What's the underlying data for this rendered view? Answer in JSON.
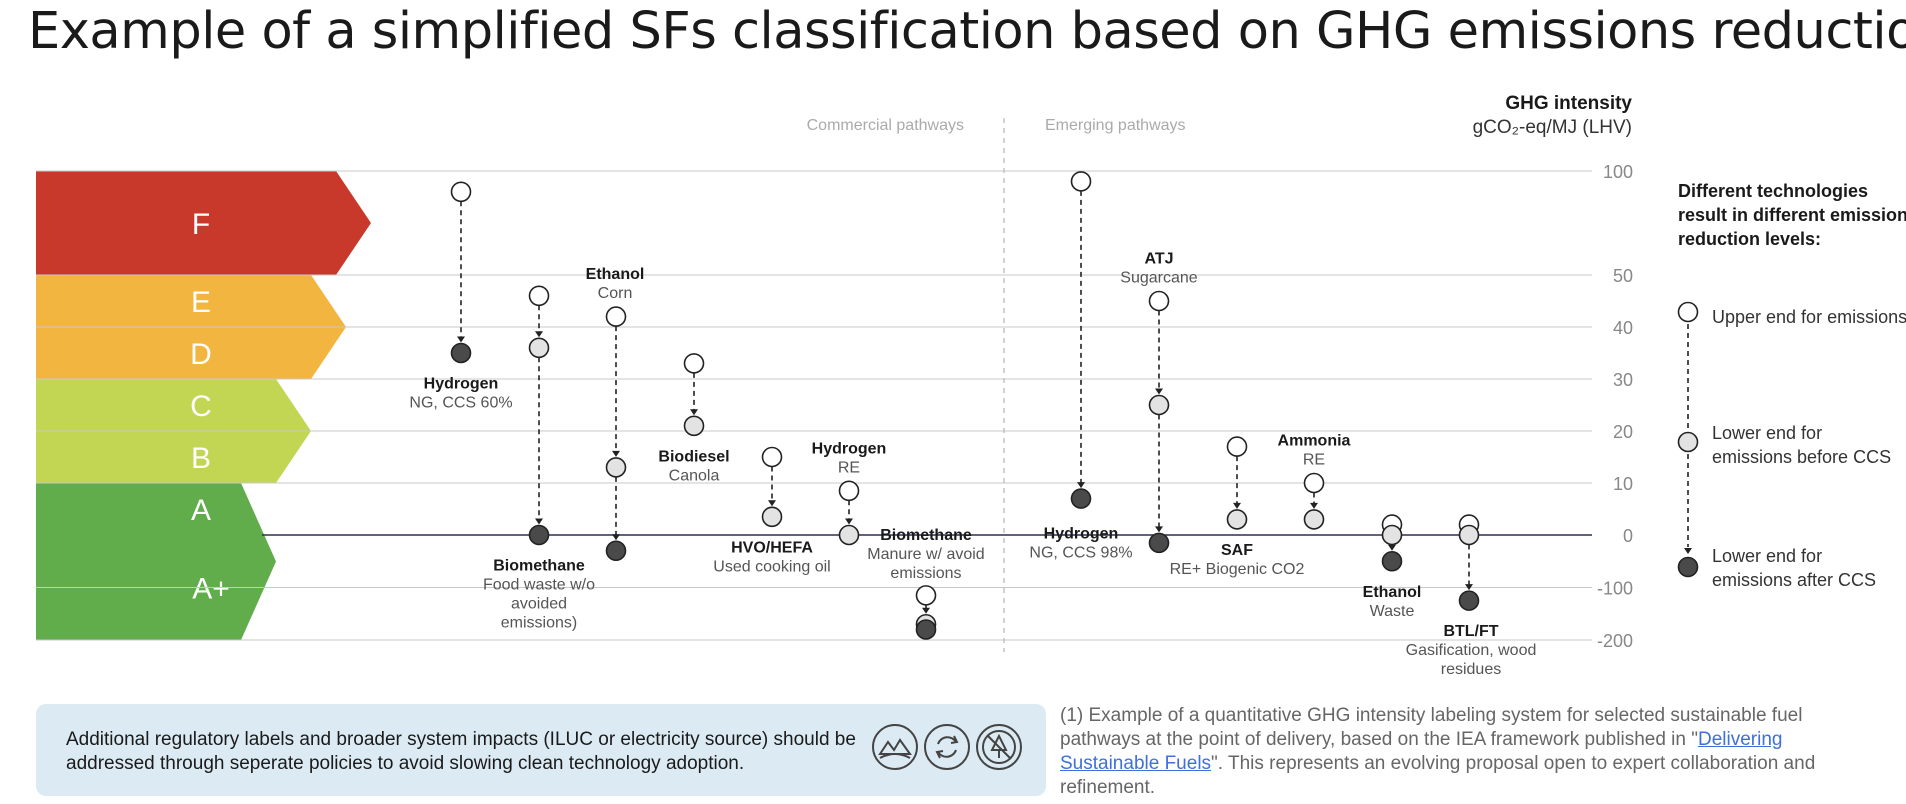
{
  "title": "Example of a simplified SFs classification based on GHG emissions reduction",
  "chart_data": {
    "type": "dumbbell",
    "axis": {
      "title_line1": "GHG intensity",
      "title_line2": "gCO₂-eq/MJ (LHV)",
      "tick_labels": [
        "100",
        "50",
        "40",
        "30",
        "20",
        "10",
        "0",
        "-100",
        "-200"
      ],
      "ylim": [
        -200,
        100
      ],
      "scale": "broken (linear 0–50, compressed above 50 and below 0)"
    },
    "sections": {
      "commercial": "Commercial pathways",
      "emerging": "Emerging pathways"
    },
    "classes": [
      {
        "label": "F",
        "range": [
          50,
          100
        ],
        "color": "#c8392b"
      },
      {
        "label": "E",
        "range": [
          40,
          50
        ],
        "color": "#f2b53f"
      },
      {
        "label": "D",
        "range": [
          30,
          40
        ],
        "color": "#f2b53f"
      },
      {
        "label": "C",
        "range": [
          20,
          30
        ],
        "color": "#c3d653"
      },
      {
        "label": "B",
        "range": [
          10,
          20
        ],
        "color": "#c3d653"
      },
      {
        "label": "A",
        "range": [
          0,
          10
        ],
        "color": "#61ac4b"
      },
      {
        "label": "A+",
        "range": [
          -200,
          0
        ],
        "color": "#61ac4b"
      }
    ],
    "pathways": [
      {
        "name": "Hydrogen",
        "sub": "NG, CCS 60%",
        "upper": 90,
        "before_ccs": null,
        "after_ccs": 35,
        "section": "commercial"
      },
      {
        "name": "Biomethane",
        "sub": "Food waste w/o avoided emissions)",
        "upper": 46,
        "before_ccs": 36,
        "after_ccs": 0,
        "section": "commercial"
      },
      {
        "name": "Ethanol",
        "sub": "Corn",
        "upper": 42,
        "before_ccs": 13,
        "after_ccs": -30,
        "section": "commercial"
      },
      {
        "name": "Biodiesel",
        "sub": "Canola",
        "upper": 33,
        "before_ccs": 21,
        "after_ccs": null,
        "section": "commercial"
      },
      {
        "name": "HVO/HEFA",
        "sub": "Used cooking oil",
        "upper": 15,
        "before_ccs": 3.5,
        "after_ccs": null,
        "section": "commercial"
      },
      {
        "name": "Hydrogen",
        "sub": "RE",
        "upper": 8.5,
        "before_ccs": 0,
        "after_ccs": null,
        "section": "commercial"
      },
      {
        "name": "Biomethane",
        "sub": "Manure w/ avoid emissions",
        "upper": -115,
        "before_ccs": -170,
        "after_ccs": -180,
        "section": "commercial"
      },
      {
        "name": "Hydrogen",
        "sub": "NG, CCS 98%",
        "upper": 95,
        "before_ccs": null,
        "after_ccs": 7,
        "section": "emerging"
      },
      {
        "name": "ATJ",
        "sub": "Sugarcane",
        "upper": 45,
        "before_ccs": 25,
        "after_ccs": -15,
        "section": "emerging"
      },
      {
        "name": "SAF",
        "sub": "RE+ Biogenic CO2",
        "upper": 17,
        "before_ccs": 3,
        "after_ccs": null,
        "section": "emerging"
      },
      {
        "name": "Ammonia",
        "sub": "RE",
        "upper": 10,
        "before_ccs": 3,
        "after_ccs": null,
        "section": "emerging"
      },
      {
        "name": "Ethanol",
        "sub": "Waste",
        "upper": 2,
        "before_ccs": 0,
        "after_ccs": -50,
        "section": "emerging"
      },
      {
        "name": "BTL/FT",
        "sub": "Gasification, wood residues",
        "upper": 2,
        "before_ccs": 0,
        "after_ccs": -125,
        "section": "emerging"
      }
    ],
    "legend": {
      "heading": [
        "Different technologies",
        "result in different emission",
        "reduction levels:"
      ],
      "upper": [
        "Upper end for emissions"
      ],
      "before": [
        "Lower end for",
        "emissions before CCS"
      ],
      "after": [
        "Lower end for",
        "emissions after CCS"
      ]
    },
    "colors": {
      "upper": "#ffffff",
      "before_ccs": "#e3e3e3",
      "after_ccs": "#4a4a4a",
      "grid": "#c8c8c8",
      "zero_line": "#2b2f54"
    }
  },
  "footer": {
    "text": "Additional regulatory labels and broader system impacts (ILUC or electricity source) should be addressed through seperate policies to avoid slowing clean technology adoption.",
    "icons": [
      "land-use-icon",
      "cycle-icon",
      "no-deforestation-icon"
    ]
  },
  "footnote": {
    "before": "(1) Example of a quantitative GHG intensity labeling system for selected sustainable fuel pathways at the point of delivery, based on the IEA framework published in \"",
    "link": "Delivering Sustainable Fuels",
    "after": "\". This represents an evolving proposal open to expert collaboration and refinement."
  }
}
